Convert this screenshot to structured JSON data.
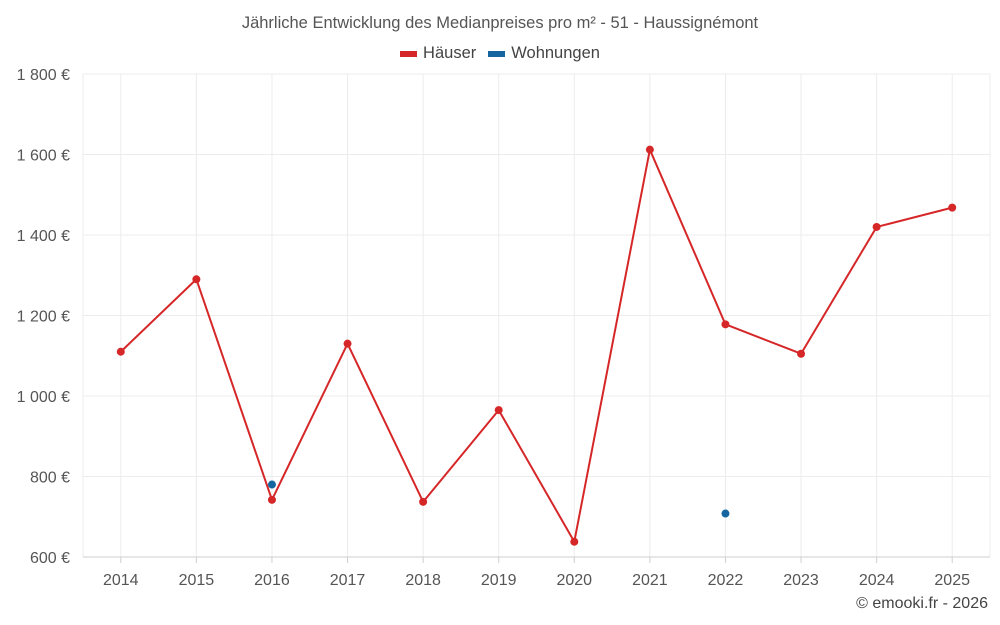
{
  "chart_data": {
    "type": "line",
    "title": "Jährliche Entwicklung des Medianpreises pro m² - 51 - Haussignémont",
    "xlabel": "",
    "ylabel": "",
    "x": [
      "2014",
      "2015",
      "2016",
      "2017",
      "2018",
      "2019",
      "2020",
      "2021",
      "2022",
      "2023",
      "2024",
      "2025"
    ],
    "ylim": [
      600,
      1800
    ],
    "yticks": [
      600,
      800,
      1000,
      1200,
      1400,
      1600,
      1800
    ],
    "ytick_labels": [
      "600 €",
      "800 €",
      "1 000 €",
      "1 200 €",
      "1 400 €",
      "1 600 €",
      "1 800 €"
    ],
    "grid": true,
    "legend_position": "top-center",
    "series": [
      {
        "name": "Häuser",
        "color": "#d62728",
        "values": [
          1110,
          1290,
          742,
          1130,
          737,
          965,
          638,
          1612,
          1178,
          1105,
          1420,
          1468
        ]
      },
      {
        "name": "Wohnungen",
        "color": "#1565a0",
        "values": [
          null,
          null,
          780,
          null,
          null,
          null,
          null,
          null,
          708,
          null,
          null,
          null
        ]
      }
    ]
  },
  "credit": "© emooki.fr - 2026"
}
